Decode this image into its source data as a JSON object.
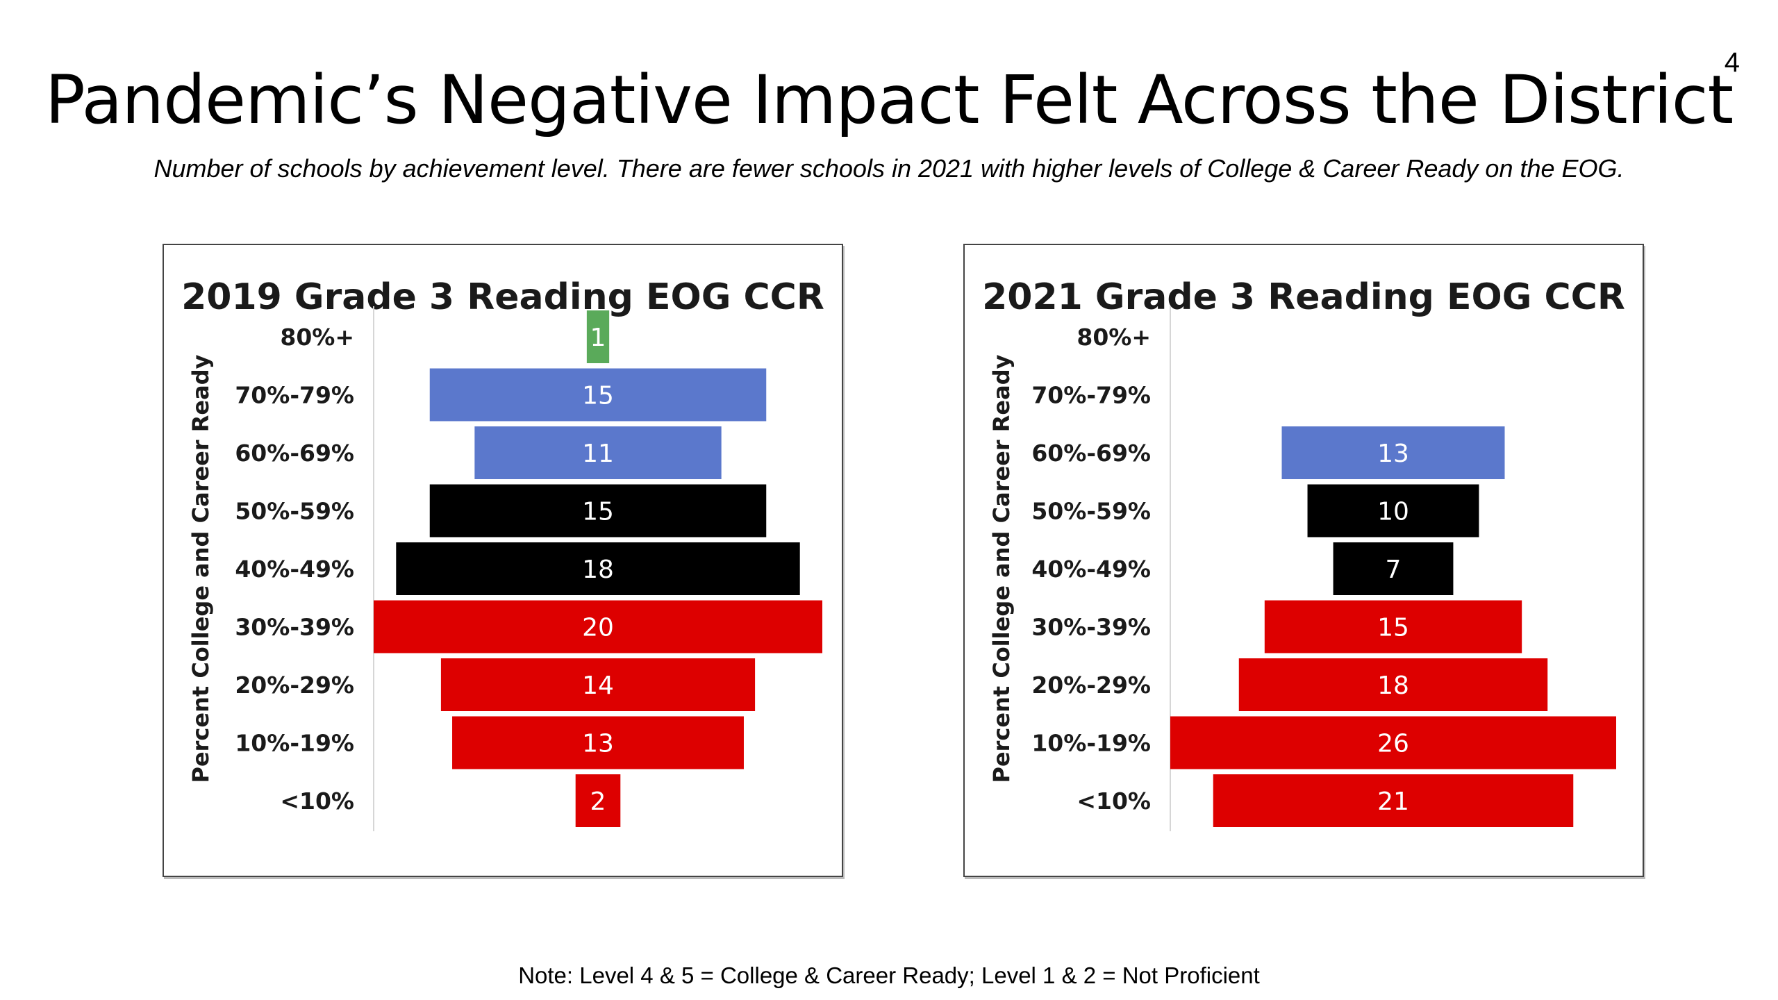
{
  "page": {
    "number": "4",
    "title": "Pandemic’s Negative Impact Felt Across the District",
    "subtitle": "Number of schools by achievement level. There are fewer schools in 2021 with higher levels of College & Career Ready on the EOG.",
    "note": "Note: Level 4 & 5 = College & Career Ready; Level 1 & 2 = Not Proficient"
  },
  "colors": {
    "green": "#5aaa5a",
    "blue": "#5b78cc",
    "black": "#000000",
    "red": "#dd0000"
  },
  "chart_data": [
    {
      "type": "bar",
      "orientation": "horizontal",
      "layout": "centered-pyramid",
      "title": "2019 Grade 3 Reading EOG CCR",
      "ylabel": "Percent College and Career Ready",
      "xlabel": "",
      "grid": false,
      "categories": [
        "80%+",
        "70%-79%",
        "60%-69%",
        "50%-59%",
        "40%-49%",
        "30%-39%",
        "20%-29%",
        "10%-19%",
        "<10%"
      ],
      "values": [
        1,
        15,
        11,
        15,
        18,
        20,
        14,
        13,
        2
      ],
      "bar_colors": [
        "green",
        "blue",
        "blue",
        "black",
        "black",
        "red",
        "red",
        "red",
        "red"
      ],
      "data_labels": [
        "1",
        "15",
        "11",
        "15",
        "18",
        "20",
        "14",
        "13",
        "2"
      ],
      "xlim": [
        0,
        20
      ]
    },
    {
      "type": "bar",
      "orientation": "horizontal",
      "layout": "centered-pyramid",
      "title": "2021 Grade 3 Reading EOG CCR",
      "ylabel": "Percent College and Career Ready",
      "xlabel": "",
      "grid": false,
      "categories": [
        "80%+",
        "70%-79%",
        "60%-69%",
        "50%-59%",
        "40%-49%",
        "30%-39%",
        "20%-29%",
        "10%-19%",
        "<10%"
      ],
      "values": [
        0,
        0,
        13,
        10,
        7,
        15,
        18,
        26,
        21
      ],
      "bar_colors": [
        "green",
        "blue",
        "blue",
        "black",
        "black",
        "red",
        "red",
        "red",
        "red"
      ],
      "data_labels": [
        "",
        "",
        "13",
        "10",
        "7",
        "15",
        "18",
        "26",
        "21"
      ],
      "xlim": [
        0,
        26
      ]
    }
  ]
}
